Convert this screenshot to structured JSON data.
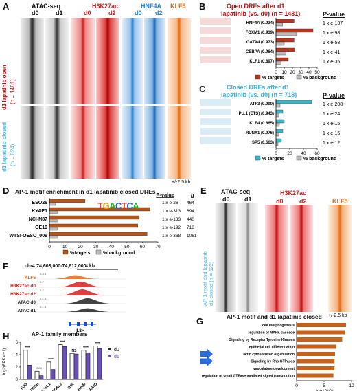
{
  "panelA": {
    "letter": "A",
    "atac_title": "ATAC-seq",
    "h3k27ac_title": "H3K27ac",
    "hnf4a_title": "HNF4A",
    "klf5_title": "KLF5",
    "col_d0": "d0",
    "col_d1": "d1",
    "col_d2": "d2",
    "row_open_label": "d1 lapatinib open",
    "row_open_n": "(n = 1481)",
    "row_closed_label": "d1 lapatinib closed",
    "row_closed_n": "(n = 824)",
    "range_label": "+/-2.5 kb",
    "colors": {
      "atac": "#555555",
      "h3k27ac": "#d42020",
      "hnf4a": "#2a7fd0",
      "klf5": "#e86a10"
    }
  },
  "panelB": {
    "letter": "B",
    "title_line1": "Open DREs after d1",
    "title_line2": "lapatinib (vs. d0) (n = 1431)",
    "pvalue_header": "P-value",
    "motifs": [
      {
        "name": "HNF4A (0.934)",
        "pvalue": "1 x e-137"
      },
      {
        "name": "FOXM1 (0.939)",
        "pvalue": "1 x e-98"
      },
      {
        "name": "GATA4 (0.973)",
        "pvalue": "1 x e-58"
      },
      {
        "name": "CEBPA (0.964)",
        "pvalue": "1 x e-41"
      },
      {
        "name": "KLF1 (0.897)",
        "pvalue": "1 x e-35"
      }
    ],
    "axis_ticks": [
      "0",
      "10",
      "20",
      "30",
      "40",
      "50"
    ],
    "legend_targets": "% targets",
    "legend_background": "% background"
  },
  "panelC": {
    "letter": "C",
    "title_line1": "Closed DREs after d1",
    "title_line2": "lapatinib (vs. d0) (n = 718)",
    "pvalue_header": "P-value",
    "motifs": [
      {
        "name": "ATF3 (0.990)",
        "pvalue": "1 x e-208"
      },
      {
        "name": "PU.1 (ETS) (0.943)",
        "pvalue": "1 x e-24"
      },
      {
        "name": "KLF4 (0.865)",
        "pvalue": "1 x e-15"
      },
      {
        "name": "RUNX1 (0.976)",
        "pvalue": "1 x e-15"
      },
      {
        "name": "SP5 (0.663)",
        "pvalue": "1 x e-12"
      }
    ],
    "axis_ticks": [
      "0",
      "20",
      "40",
      "60"
    ],
    "legend_targets": "% targets",
    "legend_background": "% background"
  },
  "panelD": {
    "letter": "D",
    "title": "AP-1 motif enrichment in d1 lapatinib closed DREs",
    "pvalue_header": "P-value",
    "n_header": "n",
    "rows": [
      {
        "name": "ESO26",
        "pvalue": "1 x e-26",
        "n": "464"
      },
      {
        "name": "KYAE1",
        "pvalue": "1 x e-313",
        "n": "894"
      },
      {
        "name": "NCI-N87",
        "pvalue": "1 x e-133",
        "n": "440"
      },
      {
        "name": "OE19",
        "pvalue": "1 x e-192",
        "n": "718"
      },
      {
        "name": "WTSI-OESO_009",
        "pvalue": "1 x e-368",
        "n": "1061"
      }
    ],
    "axis_ticks": [
      "0",
      "10",
      "20",
      "30",
      "40",
      "50",
      "60",
      "70"
    ],
    "legend_targets": "%targets",
    "legend_background": "%background",
    "motif_logo": "TGACTCA"
  },
  "panelE": {
    "letter": "E",
    "atac_title": "ATAC-seq",
    "h3k27ac_title": "H3K27ac",
    "klf5_title": "KLF5",
    "col_d0": "d0",
    "col_d1": "d1",
    "col_d2": "d2",
    "row_label_line1": "AP-1 motif and lapatinib",
    "row_label_line2": "d1 closed (n = 622)",
    "range_label": "+/-2.5 kb"
  },
  "panelF": {
    "letter": "F",
    "locus": "chr4:74,603,000-74,612,000",
    "scale": "4 kb",
    "tracks": [
      {
        "name": "KLF5",
        "range": "0-3.5",
        "color": "#e86a10"
      },
      {
        "name": "H3K27ac d0",
        "range": "0-7",
        "color": "#d42020"
      },
      {
        "name": "H3K27ac d2",
        "range": "0-7",
        "color": "#d42020"
      },
      {
        "name": "ATAC d0",
        "range": "0-1.5",
        "color": "#222222"
      },
      {
        "name": "ATAC d1",
        "range": "0-1.5",
        "color": "#222222"
      }
    ],
    "gene": "IL8>"
  },
  "panelG": {
    "letter": "G",
    "title": "AP-1 motif and d1 lapatinib closed",
    "xlabel": "-log10(Q)",
    "axis_ticks": [
      "0",
      "5",
      "10"
    ]
  },
  "panelH": {
    "letter": "H",
    "title": "AP-1 family members",
    "ylabel": "log2(FPKM+1)",
    "y_ticks": [
      "0",
      "2",
      "4",
      "6"
    ],
    "legend_d0": "d0",
    "legend_d1": "d1",
    "significance": [
      "****",
      "****",
      "****",
      "****",
      "NS",
      "****",
      "****"
    ]
  },
  "chart_data": [
    {
      "type": "bar",
      "title": "Open DREs after d1 lapatinib (vs. d0) (n = 1431)",
      "categories": [
        "HNF4A (0.934)",
        "FOXM1 (0.939)",
        "GATA4 (0.973)",
        "CEBPA (0.964)",
        "KLF1 (0.897)"
      ],
      "series": [
        {
          "name": "% targets",
          "values": [
            22,
            45,
            22,
            23,
            15
          ]
        },
        {
          "name": "% background",
          "values": [
            8,
            25,
            10,
            12,
            6
          ]
        }
      ],
      "xlim": [
        0,
        50
      ]
    },
    {
      "type": "bar",
      "title": "Closed DREs after d1 lapatinib (vs. d0) (n = 718)",
      "categories": [
        "ATF3 (0.990)",
        "PU.1 (ETS) (0.943)",
        "KLF4 (0.865)",
        "RUNX1 (0.976)",
        "SP5 (0.663)"
      ],
      "series": [
        {
          "name": "% targets",
          "values": [
            52,
            10,
            12,
            10,
            8
          ]
        },
        {
          "name": "% background",
          "values": [
            6,
            4,
            5,
            4,
            3
          ]
        }
      ],
      "xlim": [
        0,
        60
      ]
    },
    {
      "type": "bar",
      "title": "AP-1 motif enrichment in d1 lapatinib closed DREs",
      "categories": [
        "ESO26",
        "KYAE1",
        "NCI-N87",
        "OE19",
        "WTSI-OESO_009"
      ],
      "series": [
        {
          "name": "%targets",
          "values": [
            23,
            65,
            58,
            57,
            63
          ]
        },
        {
          "name": "%background",
          "values": [
            4,
            5,
            5,
            5,
            5
          ]
        }
      ],
      "xlim": [
        0,
        70
      ]
    },
    {
      "type": "bar",
      "title": "AP-1 motif and d1 lapatinib closed",
      "categories": [
        "cell morphogenesis",
        "regulation of MAPK cascade",
        "Signaling by Receptor Tyrosine Kinases",
        "epithelial cell differentiation",
        "actin cytoskeleton organization",
        "Signaling by Rho GTPases",
        "vasculature development",
        "regulation of small GTPase mediated signal transduction"
      ],
      "series": [
        {
          "name": "-log10(Q)",
          "values": [
            9.0,
            8.8,
            8.3,
            7.2,
            7.0,
            6.9,
            6.9,
            6.7
          ]
        }
      ],
      "xlabel": "-log10(Q)",
      "xlim": [
        0,
        10
      ]
    },
    {
      "type": "bar",
      "title": "AP-1 family members",
      "categories": [
        "FOS",
        "FOSB",
        "FOSL1",
        "FOSL2",
        "JUN",
        "JUNB",
        "JUND"
      ],
      "series": [
        {
          "name": "d0",
          "values": [
            4.7,
            1.3,
            2.8,
            5.6,
            4.2,
            4.7,
            5.4
          ]
        },
        {
          "name": "d1",
          "values": [
            2.3,
            0.6,
            1.6,
            5.3,
            4.1,
            4.3,
            5.0
          ]
        }
      ],
      "ylabel": "log2(FPKM+1)",
      "ylim": [
        0,
        6
      ]
    }
  ]
}
